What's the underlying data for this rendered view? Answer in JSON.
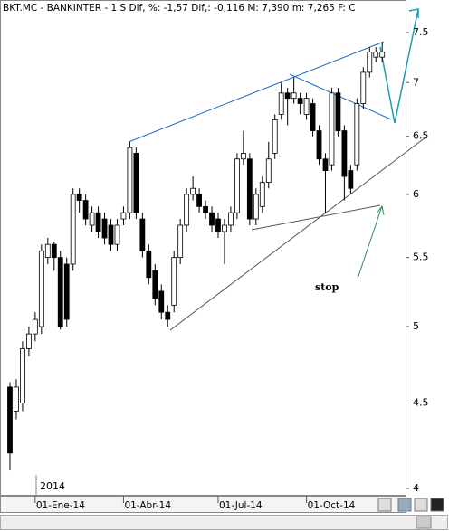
{
  "chart_data": {
    "type": "candlestick",
    "title": "BKT.MC - BANKINTER -  1 S Dif, %: -1,57 Dif,: -0,116 M: 7,390 m: 7,265 F: C",
    "year_label": "2014",
    "annotations": [
      "stop"
    ],
    "categories": [
      null,
      null,
      null,
      null,
      "01-Ene-14",
      null,
      null,
      null,
      null,
      null,
      null,
      null,
      null,
      null,
      null,
      null,
      null,
      null,
      "01-Abr-14",
      null,
      null,
      null,
      null,
      null,
      null,
      null,
      null,
      null,
      null,
      null,
      null,
      null,
      null,
      "01-Jul-14",
      null,
      null,
      null,
      null,
      null,
      null,
      null,
      null,
      null,
      null,
      null,
      null,
      null,
      "01-Oct-14",
      null,
      null,
      null,
      null,
      null,
      null,
      null,
      null,
      null,
      null,
      null,
      null
    ],
    "open": [
      4.6,
      4.45,
      4.5,
      4.85,
      4.95,
      5.0,
      5.5,
      5.6,
      5.5,
      5.45,
      5.45,
      6.0,
      5.95,
      5.75,
      5.85,
      5.8,
      5.75,
      5.6,
      5.8,
      5.85,
      6.35,
      5.8,
      5.55,
      5.4,
      5.25,
      5.1,
      5.15,
      5.5,
      5.75,
      6.0,
      6.0,
      5.9,
      5.85,
      5.8,
      5.7,
      5.75,
      5.85,
      6.3,
      6.3,
      5.8,
      5.9,
      6.1,
      6.35,
      6.7,
      6.9,
      6.85,
      6.85,
      6.7,
      6.8,
      6.55,
      6.3,
      6.25,
      6.9,
      6.55,
      6.2,
      6.25,
      6.8,
      7.1,
      7.25,
      7.25
    ],
    "close": [
      4.2,
      4.6,
      4.85,
      4.95,
      5.05,
      5.55,
      5.6,
      5.5,
      5.0,
      5.05,
      6.0,
      5.95,
      5.8,
      5.85,
      5.7,
      5.65,
      5.6,
      5.75,
      5.85,
      6.4,
      5.85,
      5.55,
      5.35,
      5.2,
      5.1,
      5.05,
      5.5,
      5.75,
      6.0,
      6.05,
      5.9,
      5.85,
      5.75,
      5.7,
      5.75,
      5.85,
      6.3,
      6.35,
      5.8,
      6.0,
      6.1,
      6.3,
      6.65,
      6.9,
      6.85,
      6.9,
      6.8,
      6.85,
      6.55,
      6.3,
      6.2,
      6.9,
      6.55,
      6.15,
      6.05,
      6.8,
      7.1,
      7.3,
      7.3,
      7.3
    ],
    "high": [
      4.63,
      4.65,
      4.9,
      5.0,
      5.1,
      5.6,
      5.65,
      5.62,
      5.55,
      5.5,
      6.05,
      6.05,
      6.0,
      5.9,
      5.9,
      5.85,
      5.8,
      5.8,
      5.9,
      6.45,
      6.4,
      5.85,
      5.6,
      5.45,
      5.3,
      5.15,
      5.55,
      5.8,
      6.05,
      6.15,
      6.05,
      5.95,
      5.9,
      5.85,
      5.8,
      5.9,
      6.35,
      6.55,
      6.35,
      6.05,
      6.15,
      6.45,
      6.7,
      7.0,
      6.95,
      7.05,
      6.9,
      6.9,
      6.85,
      6.6,
      6.35,
      6.95,
      6.95,
      6.6,
      6.25,
      6.85,
      7.15,
      7.35,
      7.35,
      7.4
    ],
    "low": [
      4.1,
      4.4,
      4.45,
      4.8,
      4.9,
      4.95,
      5.45,
      5.4,
      4.98,
      5.0,
      5.4,
      5.85,
      5.75,
      5.7,
      5.65,
      5.6,
      5.55,
      5.55,
      5.75,
      5.8,
      5.8,
      5.5,
      5.3,
      5.15,
      5.05,
      5.0,
      5.1,
      5.45,
      5.7,
      5.95,
      5.85,
      5.8,
      5.7,
      5.65,
      5.45,
      5.7,
      5.8,
      6.25,
      5.75,
      5.75,
      5.85,
      6.05,
      6.3,
      6.65,
      6.6,
      6.8,
      6.7,
      6.65,
      6.5,
      6.25,
      5.85,
      6.2,
      6.5,
      5.95,
      6.0,
      6.2,
      6.75,
      7.05,
      7.2,
      7.2
    ],
    "up_color": "#ffffff",
    "down_color": "#000000",
    "ylim": [
      3.96,
      7.67
    ],
    "log_scale": true,
    "yticks": [
      4,
      4.5,
      5,
      5.5,
      6,
      6.5,
      7,
      7.5
    ]
  }
}
